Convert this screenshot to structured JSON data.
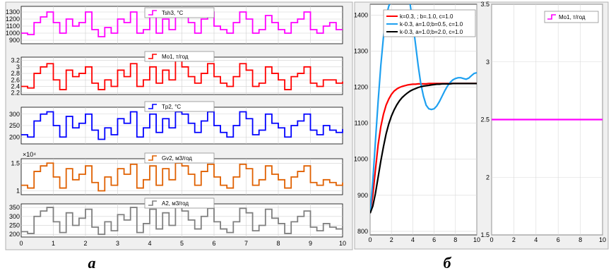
{
  "captions": {
    "left": "а",
    "right": "б"
  },
  "chart_data": [
    {
      "type": "line",
      "panel": "a",
      "step": true,
      "xlim": [
        0,
        10
      ],
      "xticks": [
        "0",
        "1",
        "2",
        "3",
        "4",
        "5",
        "6",
        "7",
        "8",
        "9",
        "10"
      ],
      "x": [
        0,
        0.2,
        0.4,
        0.6,
        0.8,
        1.0,
        1.2,
        1.4,
        1.6,
        1.8,
        2.0,
        2.2,
        2.4,
        2.6,
        2.8,
        3.0,
        3.2,
        3.4,
        3.6,
        3.8,
        4.0,
        4.2,
        4.4,
        4.6,
        4.8,
        5.0,
        5.2,
        5.4,
        5.6,
        5.8,
        6.0,
        6.2,
        6.4,
        6.6,
        6.8,
        7.0,
        7.2,
        7.4,
        7.6,
        7.8,
        8.0,
        8.2,
        8.4,
        8.6,
        8.8,
        9.0,
        9.2,
        9.4,
        9.6,
        9.8,
        10.0
      ],
      "subplots": [
        {
          "name": "Tsh3, °C",
          "color": "#ff00ff",
          "ylim": [
            850,
            1380
          ],
          "yticks": [
            "900",
            "1000",
            "1100",
            "1200",
            "1300"
          ],
          "ytick_values": [
            900,
            1000,
            1100,
            1200,
            1300
          ],
          "exponent": "",
          "values": [
            1000,
            980,
            1150,
            1230,
            1300,
            1150,
            1000,
            1200,
            1100,
            1150,
            1300,
            1050,
            950,
            1080,
            1000,
            1200,
            1150,
            1300,
            1000,
            1050,
            1250,
            1000,
            1200,
            1050,
            1300,
            1250,
            1150,
            1000,
            1200,
            1300,
            1100,
            1050,
            1000,
            1150,
            1300,
            1200,
            1000,
            1050,
            1250,
            1150,
            1050,
            1000,
            1150,
            1200,
            1300,
            1050,
            1000,
            1100,
            1150,
            1050,
            1050
          ]
        },
        {
          "name": "Mo1, т/год",
          "color": "#ff0000",
          "ylim": [
            2.15,
            3.3
          ],
          "yticks": [
            "2.2",
            "2.4",
            "2.6",
            "2.8",
            "3",
            "3.2"
          ],
          "ytick_values": [
            2.2,
            2.4,
            2.6,
            2.8,
            3.0,
            3.2
          ],
          "exponent": "",
          "values": [
            2.4,
            2.35,
            2.8,
            3.0,
            3.1,
            2.6,
            2.3,
            2.9,
            2.7,
            2.8,
            3.0,
            2.5,
            2.3,
            2.6,
            2.4,
            2.9,
            2.7,
            3.1,
            2.4,
            2.6,
            3.0,
            2.5,
            2.9,
            2.6,
            3.2,
            3.0,
            2.7,
            2.5,
            2.8,
            3.1,
            2.7,
            2.5,
            2.4,
            2.7,
            3.1,
            2.9,
            2.4,
            2.5,
            3.0,
            2.8,
            2.6,
            2.3,
            2.7,
            2.8,
            3.0,
            2.5,
            2.4,
            2.6,
            2.6,
            2.5,
            2.55
          ]
        },
        {
          "name": "Tp2, °C",
          "color": "#0000ff",
          "ylim": [
            170,
            330
          ],
          "yticks": [
            "200",
            "250",
            "300"
          ],
          "ytick_values": [
            200,
            250,
            300
          ],
          "exponent": "",
          "values": [
            210,
            200,
            270,
            300,
            310,
            250,
            200,
            290,
            240,
            260,
            300,
            230,
            190,
            240,
            210,
            280,
            260,
            310,
            200,
            240,
            300,
            220,
            280,
            240,
            310,
            300,
            260,
            220,
            270,
            310,
            250,
            220,
            200,
            250,
            310,
            280,
            210,
            230,
            300,
            260,
            240,
            200,
            250,
            270,
            300,
            230,
            210,
            250,
            230,
            220,
            235
          ]
        },
        {
          "name": "Gv2, м3/год",
          "color": "#e06000",
          "ylim": [
            0.93,
            1.58
          ],
          "yticks": [
            "1",
            "1.5"
          ],
          "ytick_values": [
            1.0,
            1.5
          ],
          "exponent": "×10⁴",
          "values": [
            1.1,
            1.05,
            1.35,
            1.45,
            1.5,
            1.25,
            1.05,
            1.4,
            1.2,
            1.3,
            1.45,
            1.15,
            1.0,
            1.25,
            1.1,
            1.4,
            1.3,
            1.48,
            1.05,
            1.2,
            1.45,
            1.1,
            1.4,
            1.2,
            1.5,
            1.45,
            1.3,
            1.1,
            1.35,
            1.48,
            1.25,
            1.1,
            1.05,
            1.25,
            1.48,
            1.4,
            1.1,
            1.2,
            1.45,
            1.3,
            1.2,
            1.05,
            1.25,
            1.35,
            1.45,
            1.15,
            1.1,
            1.2,
            1.15,
            1.1,
            1.15
          ]
        },
        {
          "name": "A2, м3/год",
          "color": "#808080",
          "ylim": [
            185,
            370
          ],
          "yticks": [
            "200",
            "250",
            "300",
            "350"
          ],
          "ytick_values": [
            200,
            250,
            300,
            350
          ],
          "exponent": "",
          "values": [
            215,
            205,
            300,
            330,
            350,
            270,
            210,
            320,
            250,
            290,
            340,
            240,
            200,
            270,
            220,
            310,
            280,
            350,
            210,
            260,
            340,
            230,
            320,
            250,
            355,
            330,
            280,
            230,
            300,
            345,
            270,
            230,
            210,
            270,
            345,
            320,
            220,
            250,
            340,
            290,
            260,
            205,
            270,
            300,
            330,
            240,
            220,
            260,
            240,
            230,
            245
          ]
        }
      ]
    },
    {
      "type": "line",
      "panel": "b-left",
      "xlim": [
        0,
        10
      ],
      "ylim": [
        790,
        1430
      ],
      "xticks": [
        "0",
        "2",
        "4",
        "6",
        "8",
        "10"
      ],
      "yticks": [
        "800",
        "900",
        "1000",
        "1100",
        "1200",
        "1300",
        "1400"
      ],
      "ytick_values": [
        800,
        900,
        1000,
        1100,
        1200,
        1300,
        1400
      ],
      "legend": "top-right",
      "x": [
        0,
        0.25,
        0.5,
        0.75,
        1.0,
        1.25,
        1.5,
        1.75,
        2.0,
        2.25,
        2.5,
        2.75,
        3.0,
        3.25,
        3.5,
        3.75,
        4.0,
        4.25,
        4.5,
        4.75,
        5.0,
        5.25,
        5.5,
        5.75,
        6.0,
        6.25,
        6.5,
        6.75,
        7.0,
        7.25,
        7.5,
        7.75,
        8.0,
        8.25,
        8.5,
        8.75,
        9.0,
        9.25,
        9.5,
        9.75,
        10.0
      ],
      "series": [
        {
          "name": "k=0.3, ; b=.1.0,  c=1.0",
          "color": "#ff0000",
          "values": [
            850,
            900,
            970,
            1040,
            1090,
            1125,
            1150,
            1167,
            1180,
            1189,
            1195,
            1199,
            1202,
            1204,
            1206,
            1207,
            1208,
            1208,
            1209,
            1209,
            1209,
            1209,
            1210,
            1210,
            1210,
            1210,
            1210,
            1210,
            1210,
            1210,
            1210,
            1210,
            1210,
            1210,
            1210,
            1210,
            1210,
            1210,
            1210,
            1210,
            1210
          ]
        },
        {
          "name": "k-0.3, a=1.0;b=0.5, c=1.0",
          "color": "#1ea0f0",
          "values": [
            850,
            940,
            1050,
            1160,
            1260,
            1340,
            1395,
            1425,
            1440,
            1440,
            1440,
            1440,
            1440,
            1440,
            1440,
            1430,
            1380,
            1320,
            1260,
            1210,
            1175,
            1150,
            1140,
            1138,
            1140,
            1148,
            1160,
            1175,
            1190,
            1203,
            1213,
            1220,
            1224,
            1226,
            1226,
            1224,
            1222,
            1225,
            1232,
            1238,
            1240
          ]
        },
        {
          "name": "k-0.3, a=1.0;b=2.0, c=1.0",
          "color": "#000000",
          "values": [
            850,
            870,
            905,
            950,
            995,
            1035,
            1070,
            1098,
            1120,
            1137,
            1151,
            1162,
            1171,
            1178,
            1184,
            1189,
            1193,
            1196,
            1199,
            1201,
            1203,
            1204,
            1205,
            1206,
            1207,
            1208,
            1208,
            1209,
            1209,
            1209,
            1209,
            1210,
            1210,
            1210,
            1210,
            1210,
            1210,
            1210,
            1210,
            1210,
            1210
          ]
        }
      ]
    },
    {
      "type": "line",
      "panel": "b-right",
      "xlim": [
        0,
        10
      ],
      "ylim": [
        1.5,
        3.5
      ],
      "xticks": [
        "0",
        "2",
        "4",
        "6",
        "8",
        "10"
      ],
      "yticks": [
        "1.5",
        "2",
        "2.5",
        "3",
        "3.5"
      ],
      "ytick_values": [
        1.5,
        2.0,
        2.5,
        3.0,
        3.5
      ],
      "legend": "top-right",
      "x": [
        0,
        10
      ],
      "series": [
        {
          "name": "Mo1, т/год",
          "color": "#ff00ff",
          "values": [
            2.5,
            2.5
          ]
        }
      ]
    }
  ]
}
